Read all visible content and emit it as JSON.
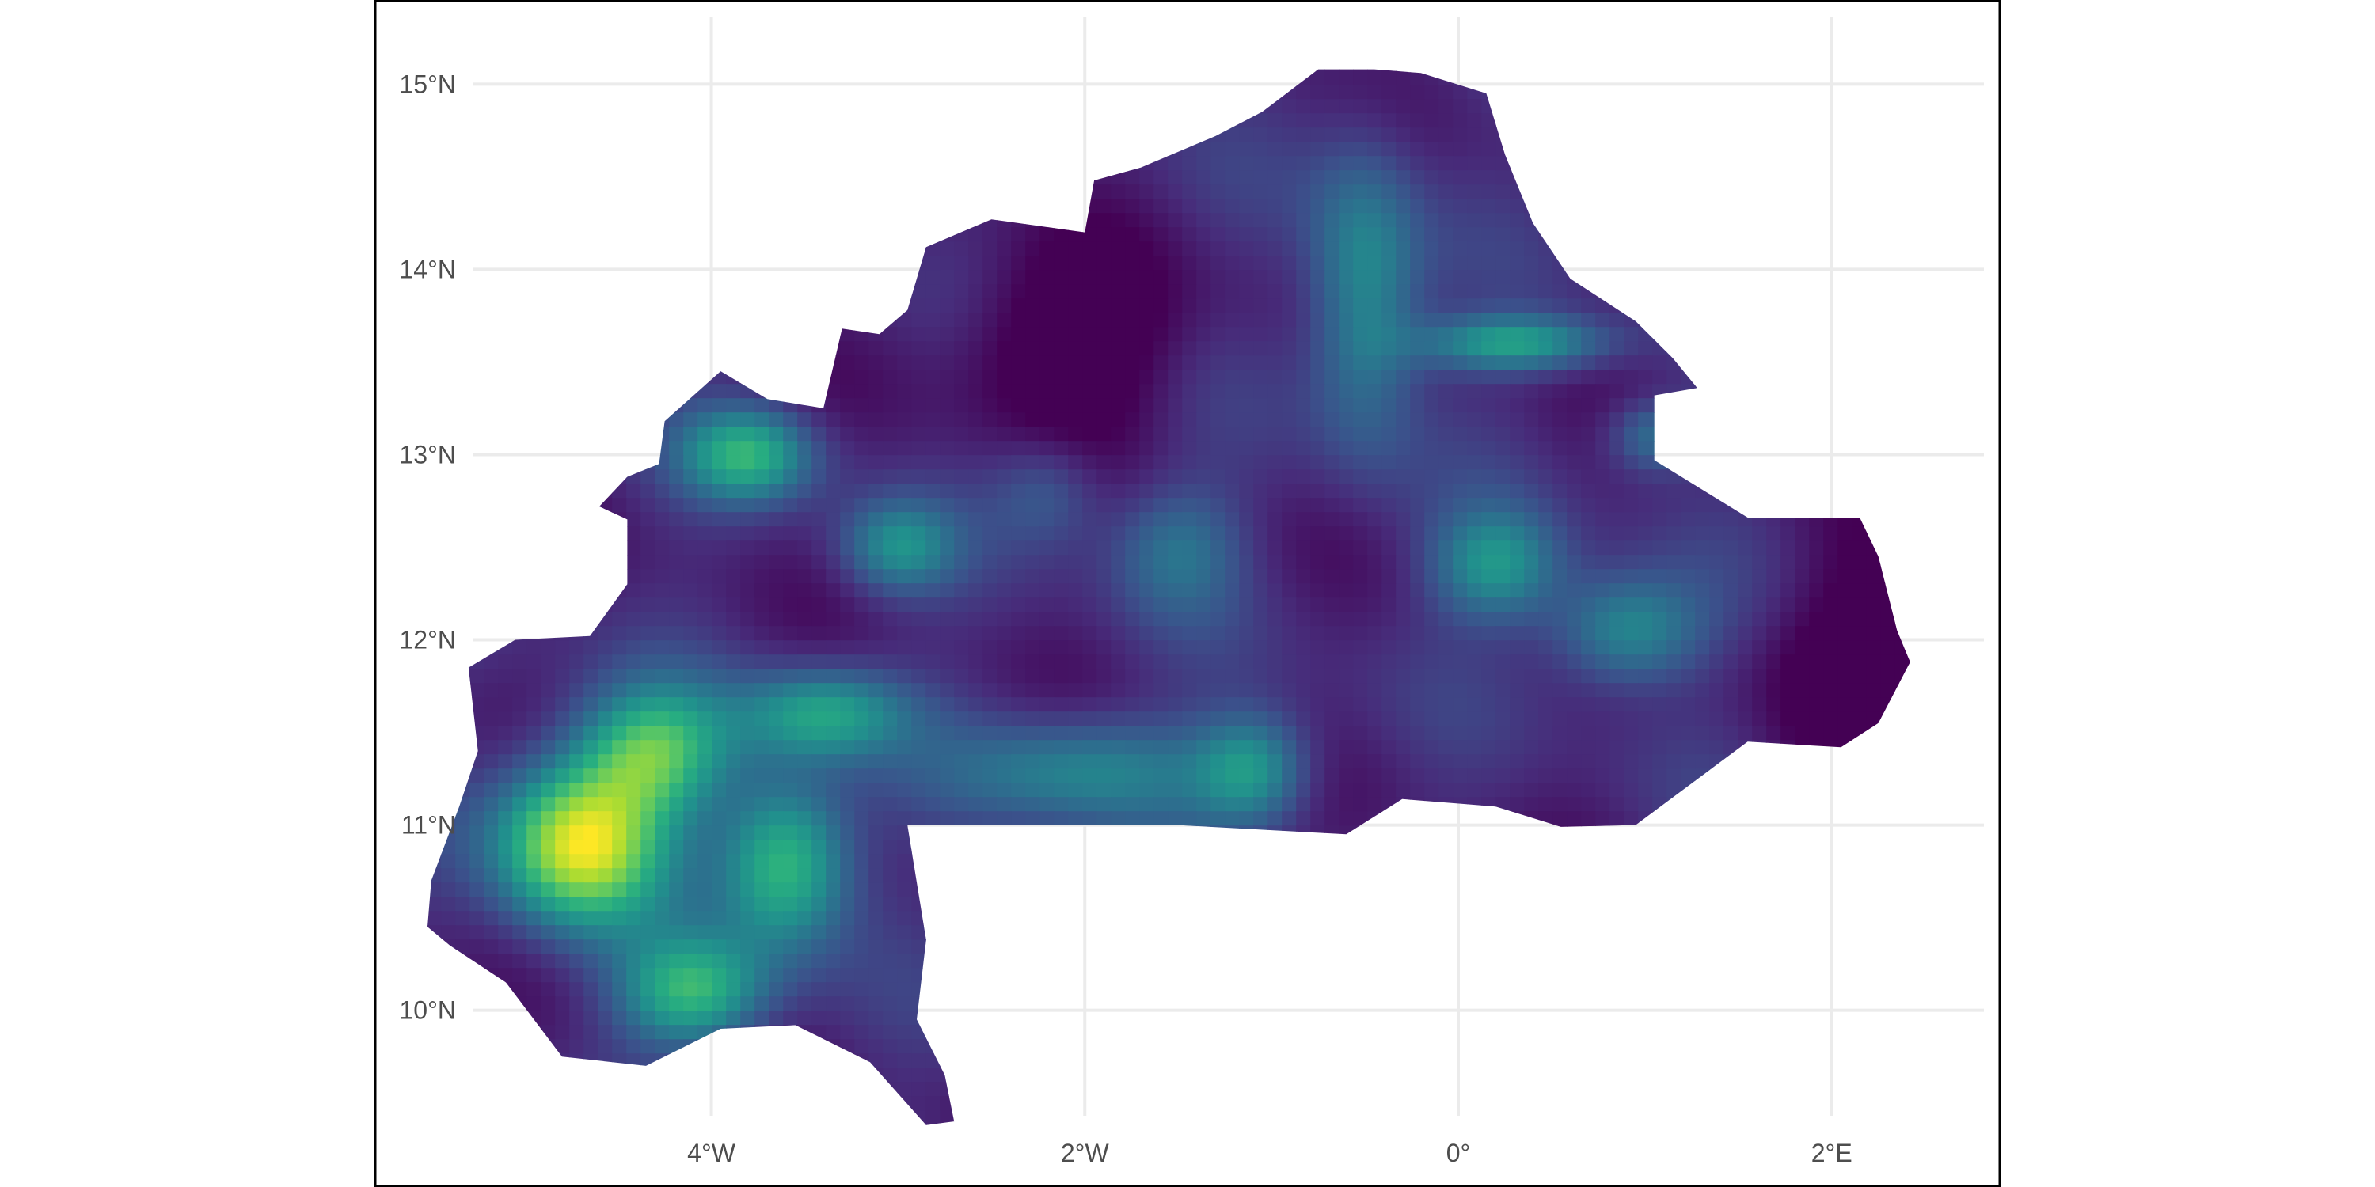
{
  "map": {
    "title": "",
    "legend": "none",
    "colormap": "viridis",
    "colors": {
      "background": "#ffffff",
      "panel_border": "#000000",
      "gridline": "#ebebeb",
      "tick_text": "#4d4d4d"
    },
    "x_axis": {
      "range": [
        -5.8,
        2.9
      ],
      "ticks": [
        {
          "value": -4,
          "label": "4°W"
        },
        {
          "value": -2,
          "label": "2°W"
        },
        {
          "value": 0,
          "label": "0°"
        },
        {
          "value": 2,
          "label": "2°E"
        }
      ]
    },
    "y_axis": {
      "range": [
        9.05,
        15.45
      ],
      "ticks": [
        {
          "value": 15,
          "label": "15°N"
        },
        {
          "value": 14,
          "label": "14°N"
        },
        {
          "value": 13,
          "label": "13°N"
        },
        {
          "value": 12,
          "label": "12°N"
        },
        {
          "value": 11,
          "label": "11°N"
        },
        {
          "value": 10,
          "label": "10°N"
        }
      ]
    },
    "region_outline_lonlat": [
      [
        -0.45,
        15.08
      ],
      [
        -0.2,
        15.06
      ],
      [
        0.15,
        14.95
      ],
      [
        0.25,
        14.62
      ],
      [
        0.4,
        14.25
      ],
      [
        0.6,
        13.95
      ],
      [
        0.95,
        13.72
      ],
      [
        1.15,
        13.52
      ],
      [
        1.28,
        13.36
      ],
      [
        1.05,
        13.32
      ],
      [
        1.05,
        12.97
      ],
      [
        1.55,
        12.66
      ],
      [
        2.15,
        12.66
      ],
      [
        2.25,
        12.45
      ],
      [
        2.35,
        12.05
      ],
      [
        2.42,
        11.88
      ],
      [
        2.25,
        11.55
      ],
      [
        2.05,
        11.42
      ],
      [
        1.55,
        11.45
      ],
      [
        1.35,
        11.3
      ],
      [
        0.95,
        11.0
      ],
      [
        0.55,
        10.99
      ],
      [
        0.2,
        11.1
      ],
      [
        -0.3,
        11.14
      ],
      [
        -0.6,
        10.95
      ],
      [
        -1.5,
        11.0
      ],
      [
        -2.95,
        11.0
      ],
      [
        -2.85,
        10.38
      ],
      [
        -2.9,
        9.95
      ],
      [
        -2.75,
        9.65
      ],
      [
        -2.7,
        9.4
      ],
      [
        -2.85,
        9.38
      ],
      [
        -3.15,
        9.72
      ],
      [
        -3.55,
        9.92
      ],
      [
        -3.95,
        9.9
      ],
      [
        -4.35,
        9.7
      ],
      [
        -4.8,
        9.75
      ],
      [
        -5.1,
        10.15
      ],
      [
        -5.4,
        10.35
      ],
      [
        -5.52,
        10.45
      ],
      [
        -5.5,
        10.7
      ],
      [
        -5.35,
        11.1
      ],
      [
        -5.25,
        11.4
      ],
      [
        -5.3,
        11.85
      ],
      [
        -5.05,
        12.0
      ],
      [
        -4.65,
        12.02
      ],
      [
        -4.45,
        12.3
      ],
      [
        -4.45,
        12.65
      ],
      [
        -4.6,
        12.72
      ],
      [
        -4.45,
        12.88
      ],
      [
        -4.28,
        12.95
      ],
      [
        -4.25,
        13.18
      ],
      [
        -3.95,
        13.45
      ],
      [
        -3.7,
        13.3
      ],
      [
        -3.4,
        13.25
      ],
      [
        -3.3,
        13.68
      ],
      [
        -3.1,
        13.65
      ],
      [
        -2.95,
        13.78
      ],
      [
        -2.85,
        14.12
      ],
      [
        -2.5,
        14.27
      ],
      [
        -2.0,
        14.2
      ],
      [
        -1.95,
        14.48
      ],
      [
        -1.7,
        14.55
      ],
      [
        -1.3,
        14.72
      ],
      [
        -1.05,
        14.85
      ],
      [
        -0.75,
        15.08
      ]
    ],
    "field_blobs": [
      {
        "lon": -4.7,
        "lat": 10.9,
        "sx": 0.45,
        "sy": 0.45,
        "w": 0.85
      },
      {
        "lon": -4.3,
        "lat": 11.4,
        "sx": 0.4,
        "sy": 0.35,
        "w": 0.55
      },
      {
        "lon": -4.1,
        "lat": 10.1,
        "sx": 0.4,
        "sy": 0.3,
        "w": 0.55
      },
      {
        "lon": -3.6,
        "lat": 10.8,
        "sx": 0.35,
        "sy": 0.45,
        "w": 0.6
      },
      {
        "lon": -3.4,
        "lat": 11.6,
        "sx": 0.45,
        "sy": 0.25,
        "w": 0.45
      },
      {
        "lon": -3.8,
        "lat": 13.0,
        "sx": 0.35,
        "sy": 0.25,
        "w": 0.5
      },
      {
        "lon": -3.0,
        "lat": 12.5,
        "sx": 0.3,
        "sy": 0.25,
        "w": 0.35
      },
      {
        "lon": -2.0,
        "lat": 11.3,
        "sx": 0.7,
        "sy": 0.3,
        "w": 0.35
      },
      {
        "lon": -1.1,
        "lat": 11.3,
        "sx": 0.3,
        "sy": 0.3,
        "w": 0.4
      },
      {
        "lon": -0.5,
        "lat": 13.85,
        "sx": 0.3,
        "sy": 0.8,
        "w": 0.4
      },
      {
        "lon": 0.3,
        "lat": 13.6,
        "sx": 0.5,
        "sy": 0.15,
        "w": 0.45
      },
      {
        "lon": 0.2,
        "lat": 12.4,
        "sx": 0.35,
        "sy": 0.3,
        "w": 0.4
      },
      {
        "lon": 0.9,
        "lat": 12.05,
        "sx": 0.4,
        "sy": 0.3,
        "w": 0.4
      },
      {
        "lon": 1.05,
        "lat": 13.1,
        "sx": 0.25,
        "sy": 0.2,
        "w": 0.3
      },
      {
        "lon": -2.2,
        "lat": 12.8,
        "sx": 0.3,
        "sy": 0.3,
        "w": 0.2
      },
      {
        "lon": -1.5,
        "lat": 12.5,
        "sx": 0.35,
        "sy": 0.35,
        "w": 0.25
      }
    ]
  }
}
